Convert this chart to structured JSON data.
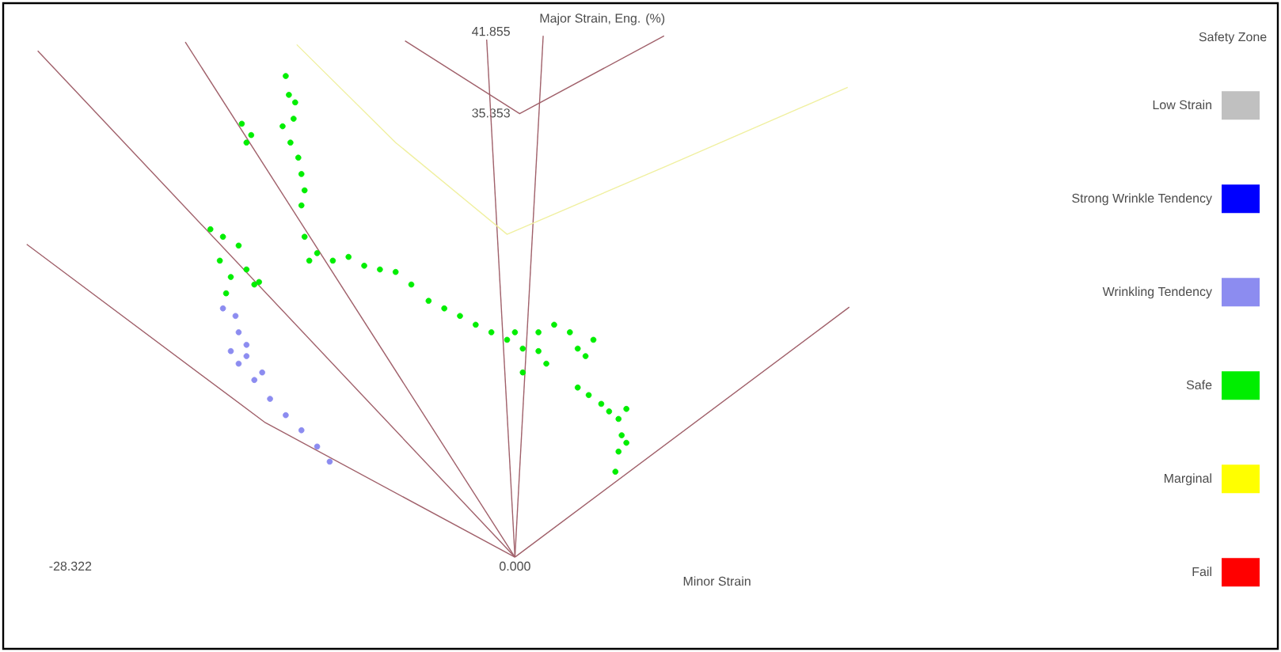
{
  "chart_data": {
    "type": "scatter",
    "xlabel": "Minor Strain",
    "ylabel": "Major Strain, Eng. (%)",
    "legend_title": "Safety Zone",
    "legend": "right",
    "marker": "circle",
    "xlim": [
      -32.6,
      48.6
    ],
    "ylim": [
      -7.3,
      44.1
    ],
    "xticks": [
      -28.322,
      {
        "value": 0,
        "label": "0.000"
      }
    ],
    "yticks": [
      35.353,
      41.855
    ],
    "series": [
      {
        "name": "Low Strain",
        "color": "#c0c0c0"
      },
      {
        "name": "Strong Wrinkle Tendency",
        "color": "#0000ff"
      },
      {
        "name": "Wrinkling Tendency",
        "color": "#8c8cf0",
        "x": [
          -18.6,
          -17.8,
          -17.6,
          -17.1,
          -18.1,
          -17.6,
          -17.1,
          -16.6,
          -16.1,
          -15.6,
          -14.6,
          -13.6,
          -12.6,
          -11.8
        ],
        "values": [
          19.8,
          19.2,
          17.9,
          16.9,
          16.4,
          15.4,
          16.0,
          14.1,
          14.7,
          12.6,
          11.3,
          10.1,
          8.8,
          7.6
        ]
      },
      {
        "name": "Safe",
        "color": "#00ee00",
        "x": [
          -14.6,
          -14.4,
          -14.0,
          -14.1,
          -14.8,
          -14.3,
          -13.8,
          -13.6,
          -13.4,
          -13.6,
          -17.4,
          -17.1,
          -16.8,
          -19.4,
          -18.6,
          -17.6,
          -18.8,
          -18.1,
          -18.4,
          -17.1,
          -16.6,
          -16.3,
          -13.4,
          -13.1,
          -12.6,
          -11.6,
          -10.6,
          -9.6,
          -8.6,
          -7.6,
          -6.6,
          -5.5,
          -4.5,
          -3.5,
          -2.5,
          -1.5,
          -0.5,
          0,
          0.5,
          1.5,
          2.0,
          1.5,
          2.5,
          3.5,
          4.0,
          4.5,
          5.0,
          0.5,
          4.0,
          4.7,
          5.5,
          6.0,
          6.6,
          7.1,
          6.8,
          6.6,
          7.1,
          6.4
        ],
        "values": [
          38.3,
          36.8,
          36.2,
          34.9,
          34.3,
          33.0,
          31.8,
          30.5,
          29.2,
          28.0,
          34.5,
          33.0,
          33.6,
          26.1,
          25.5,
          24.8,
          23.6,
          22.3,
          21.0,
          22.9,
          21.7,
          21.9,
          25.5,
          23.6,
          24.2,
          23.6,
          23.9,
          23.2,
          22.9,
          22.7,
          21.7,
          20.4,
          19.8,
          19.2,
          18.5,
          17.9,
          17.3,
          17.9,
          16.6,
          16.4,
          15.4,
          17.9,
          18.5,
          17.9,
          16.6,
          16.0,
          17.3,
          14.7,
          13.5,
          12.9,
          12.2,
          11.6,
          11.0,
          11.8,
          9.7,
          8.4,
          9.1,
          6.8
        ]
      },
      {
        "name": "Marginal",
        "color": "#ffff00"
      },
      {
        "name": "Fail",
        "color": "#ff0000"
      },
      {
        "type": "line",
        "marker": "none",
        "color": "#a0606a",
        "x": [
          -31.1,
          -15.9,
          0
        ],
        "values": [
          24.9,
          10.7,
          0
        ]
      },
      {
        "type": "line",
        "marker": "none",
        "color": "#a0606a",
        "x": [
          -30.4,
          0
        ],
        "values": [
          40.3,
          0
        ]
      },
      {
        "type": "line",
        "marker": "none",
        "color": "#a0606a",
        "x": [
          -21.0,
          0
        ],
        "values": [
          41.0,
          0
        ]
      },
      {
        "type": "line",
        "marker": "none",
        "color": "#a0606a",
        "x": [
          -1.8,
          0
        ],
        "values": [
          41.2,
          0
        ]
      },
      {
        "type": "line",
        "marker": "none",
        "color": "#a0606a",
        "x": [
          1.8,
          0
        ],
        "values": [
          41.5,
          0
        ]
      },
      {
        "type": "line",
        "marker": "none",
        "color": "#a0606a",
        "x": [
          21.3,
          0
        ],
        "values": [
          19.9,
          0
        ]
      },
      {
        "type": "line",
        "marker": "none",
        "color": "#a0606a",
        "x": [
          -7.0,
          0.3,
          9.5
        ],
        "values": [
          41.1,
          35.3,
          41.5
        ]
      },
      {
        "type": "line",
        "marker": "none",
        "color": "#f0f0a0",
        "x": [
          -13.9,
          -7.6,
          -0.5,
          9.6,
          21.2
        ],
        "values": [
          40.8,
          33.0,
          25.7,
          31.1,
          37.4
        ]
      }
    ]
  }
}
